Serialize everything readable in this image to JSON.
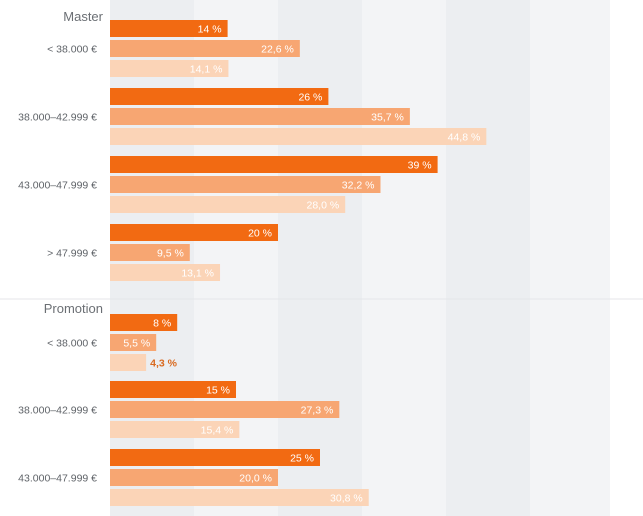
{
  "chart_data": {
    "type": "bar",
    "orientation": "horizontal",
    "grid": true,
    "colors": [
      "#f26a12",
      "#f7a672",
      "#fbd4b7"
    ],
    "label_colors": [
      "#ffffff",
      "#ffffff",
      "#ffffff"
    ],
    "groups": [
      {
        "title": "Master",
        "categories": [
          {
            "label": "< 38.000 €",
            "values": [
              14,
              22.6,
              14.1
            ],
            "value_labels": [
              "14 %",
              "22,6 %",
              "14,1 %"
            ]
          },
          {
            "label": "38.000–42.999 €",
            "values": [
              26,
              35.7,
              44.8
            ],
            "value_labels": [
              "26 %",
              "35,7 %",
              "44,8 %"
            ]
          },
          {
            "label": "43.000–47.999 €",
            "values": [
              39,
              32.2,
              28.0
            ],
            "value_labels": [
              "39 %",
              "32,2 %",
              "28,0 %"
            ]
          },
          {
            "label": "> 47.999 €",
            "values": [
              20,
              9.5,
              13.1
            ],
            "value_labels": [
              "20 %",
              "9,5 %",
              "13,1 %"
            ]
          }
        ]
      },
      {
        "title": "Promotion",
        "categories": [
          {
            "label": "< 38.000 €",
            "values": [
              8,
              5.5,
              4.3
            ],
            "value_labels": [
              "8 %",
              "5,5 %",
              "4,3 %"
            ]
          },
          {
            "label": "38.000–42.999 €",
            "values": [
              15,
              27.3,
              15.4
            ],
            "value_labels": [
              "15 %",
              "27,3 %",
              "15,4 %"
            ]
          },
          {
            "label": "43.000–47.999 €",
            "values": [
              25,
              20.0,
              30.8
            ],
            "value_labels": [
              "25 %",
              "20,0 %",
              "30,8 %"
            ]
          }
        ]
      }
    ]
  }
}
